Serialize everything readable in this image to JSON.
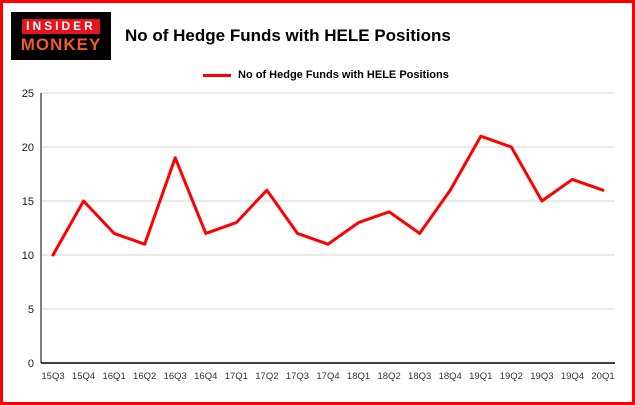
{
  "page": {
    "border_color": "#ff0000",
    "background": "#ffffff"
  },
  "logo": {
    "line1": "INSIDER",
    "line2": "MONKEY",
    "box_color": "#000000",
    "line1_bg": "#e8131d",
    "line1_color": "#ffffff",
    "line2_color": "#f05a28"
  },
  "header": {
    "title": "No of Hedge Funds with HELE Positions"
  },
  "legend": {
    "label": "No of Hedge Funds with HELE Positions",
    "line_color": "#ff0000"
  },
  "chart_data": {
    "type": "line",
    "title": "No of Hedge Funds with HELE Positions",
    "categories": [
      "15Q3",
      "15Q4",
      "16Q1",
      "16Q2",
      "16Q3",
      "16Q4",
      "17Q1",
      "17Q2",
      "17Q3",
      "17Q4",
      "18Q1",
      "18Q2",
      "18Q3",
      "18Q4",
      "19Q1",
      "19Q2",
      "19Q3",
      "19Q4",
      "20Q1"
    ],
    "values": [
      10,
      15,
      12,
      11,
      19,
      12,
      13,
      16,
      12,
      11,
      13,
      14,
      12,
      16,
      21,
      20,
      15,
      17,
      16
    ],
    "xlabel": "",
    "ylabel": "",
    "ylim": [
      0,
      25
    ],
    "yticks": [
      0,
      5,
      10,
      15,
      20,
      25
    ],
    "grid": "horizontal",
    "gridline_color": "#d6d6d6",
    "axis_color": "#000000",
    "line_color": "#ff0000",
    "legend_position": "top-left"
  }
}
